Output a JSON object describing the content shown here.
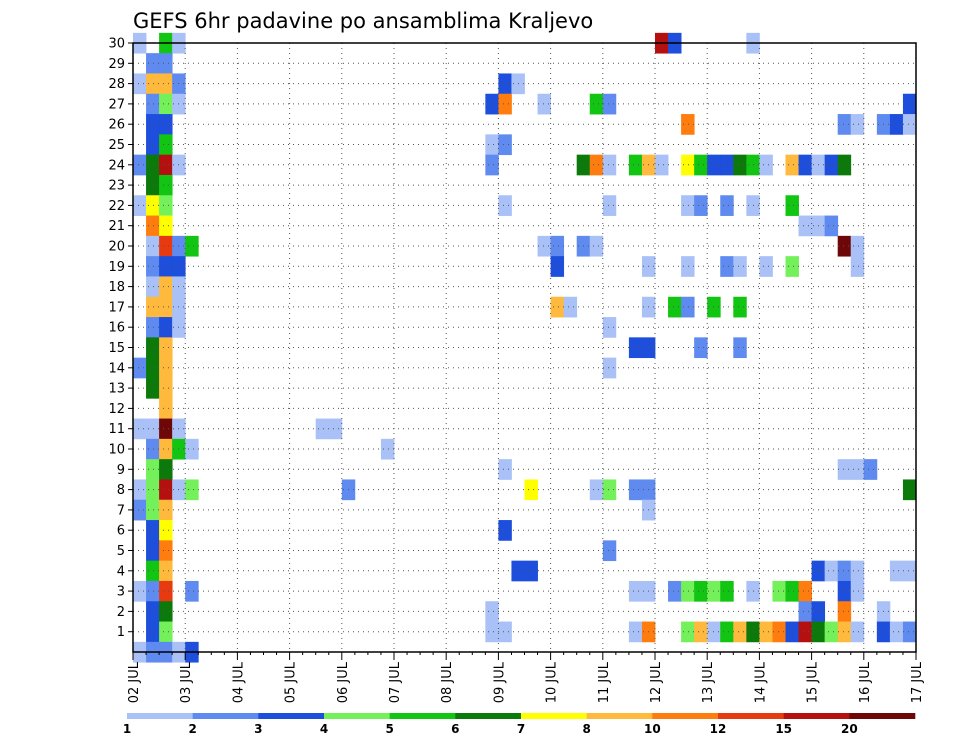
{
  "chart_data": {
    "type": "heatmap",
    "title": "GEFS 6hr padavine po ansamblima Kraljevo",
    "y_ticks": [
      "1",
      "2",
      "3",
      "4",
      "5",
      "6",
      "7",
      "8",
      "9",
      "10",
      "11",
      "12",
      "13",
      "14",
      "15",
      "16",
      "17",
      "18",
      "19",
      "20",
      "21",
      "22",
      "23",
      "24",
      "25",
      "26",
      "27",
      "28",
      "29",
      "30"
    ],
    "x_ticks": [
      "02 JUL",
      "03 JUL",
      "04 JUL",
      "05 JUL",
      "06 JUL",
      "07 JUL",
      "08 JUL",
      "09 JUL",
      "10 JUL",
      "11 JUL",
      "12 JUL",
      "13 JUL",
      "14 JUL",
      "15 JUL",
      "16 JUL",
      "17 JUL"
    ],
    "x_range_days": [
      0,
      15
    ],
    "steps_per_day": 4,
    "y_range": [
      0,
      30
    ],
    "grid": true,
    "legend_position": "bottom",
    "legend": {
      "thresholds": [
        "1",
        "2",
        "3",
        "4",
        "5",
        "6",
        "7",
        "8",
        "10",
        "12",
        "15",
        "20"
      ],
      "colors": [
        "#a9c1f7",
        "#5f8bf0",
        "#1d4fdc",
        "#74f05a",
        "#13c513",
        "#0b7a0b",
        "#ffff00",
        "#ffba3d",
        "#ff7c0e",
        "#e83a10",
        "#b51010",
        "#6e0808"
      ]
    },
    "cells": [
      [
        30,
        0,
        0
      ],
      [
        30,
        2,
        4
      ],
      [
        30,
        3,
        0
      ],
      [
        30,
        40,
        10
      ],
      [
        30,
        41,
        2
      ],
      [
        30,
        47,
        0
      ],
      [
        29,
        1,
        1
      ],
      [
        29,
        2,
        1
      ],
      [
        28,
        0,
        0
      ],
      [
        28,
        1,
        7
      ],
      [
        28,
        2,
        7
      ],
      [
        28,
        3,
        1
      ],
      [
        28,
        28,
        2
      ],
      [
        28,
        29,
        0
      ],
      [
        27,
        1,
        1
      ],
      [
        27,
        2,
        3
      ],
      [
        27,
        3,
        0
      ],
      [
        27,
        27,
        2
      ],
      [
        27,
        28,
        8
      ],
      [
        27,
        31,
        0
      ],
      [
        27,
        35,
        4
      ],
      [
        27,
        36,
        1
      ],
      [
        27,
        59,
        2
      ],
      [
        26,
        1,
        2
      ],
      [
        26,
        2,
        2
      ],
      [
        26,
        42,
        8
      ],
      [
        26,
        54,
        1
      ],
      [
        26,
        55,
        0
      ],
      [
        26,
        57,
        1
      ],
      [
        26,
        58,
        2
      ],
      [
        26,
        59,
        0
      ],
      [
        25,
        1,
        2
      ],
      [
        25,
        2,
        4
      ],
      [
        25,
        27,
        0
      ],
      [
        25,
        28,
        1
      ],
      [
        24,
        0,
        1
      ],
      [
        24,
        1,
        5
      ],
      [
        24,
        2,
        10
      ],
      [
        24,
        3,
        0
      ],
      [
        24,
        27,
        1
      ],
      [
        24,
        34,
        5
      ],
      [
        24,
        35,
        8
      ],
      [
        24,
        36,
        0
      ],
      [
        24,
        38,
        4
      ],
      [
        24,
        39,
        7
      ],
      [
        24,
        40,
        0
      ],
      [
        24,
        42,
        6
      ],
      [
        24,
        43,
        4
      ],
      [
        24,
        44,
        2
      ],
      [
        24,
        45,
        2
      ],
      [
        24,
        46,
        5
      ],
      [
        24,
        47,
        4
      ],
      [
        24,
        48,
        0
      ],
      [
        24,
        50,
        7
      ],
      [
        24,
        51,
        2
      ],
      [
        24,
        52,
        0
      ],
      [
        24,
        53,
        2
      ],
      [
        24,
        54,
        5
      ],
      [
        23,
        1,
        5
      ],
      [
        23,
        2,
        4
      ],
      [
        22,
        0,
        0
      ],
      [
        22,
        1,
        6
      ],
      [
        22,
        2,
        3
      ],
      [
        22,
        28,
        0
      ],
      [
        22,
        36,
        0
      ],
      [
        22,
        42,
        0
      ],
      [
        22,
        43,
        1
      ],
      [
        22,
        45,
        1
      ],
      [
        22,
        47,
        0
      ],
      [
        22,
        50,
        4
      ],
      [
        21,
        1,
        8
      ],
      [
        21,
        2,
        6
      ],
      [
        21,
        51,
        0
      ],
      [
        21,
        52,
        0
      ],
      [
        21,
        53,
        1
      ],
      [
        20,
        1,
        0
      ],
      [
        20,
        2,
        9
      ],
      [
        20,
        3,
        1
      ],
      [
        20,
        4,
        4
      ],
      [
        20,
        31,
        0
      ],
      [
        20,
        32,
        1
      ],
      [
        20,
        34,
        1
      ],
      [
        20,
        35,
        0
      ],
      [
        20,
        54,
        11
      ],
      [
        20,
        55,
        0
      ],
      [
        19,
        1,
        1
      ],
      [
        19,
        2,
        2
      ],
      [
        19,
        3,
        2
      ],
      [
        19,
        32,
        2
      ],
      [
        19,
        39,
        0
      ],
      [
        19,
        42,
        0
      ],
      [
        19,
        45,
        1
      ],
      [
        19,
        46,
        0
      ],
      [
        19,
        48,
        0
      ],
      [
        19,
        50,
        3
      ],
      [
        19,
        55,
        0
      ],
      [
        18,
        1,
        0
      ],
      [
        18,
        2,
        7
      ],
      [
        18,
        3,
        0
      ],
      [
        17,
        1,
        7
      ],
      [
        17,
        2,
        7
      ],
      [
        17,
        3,
        0
      ],
      [
        17,
        32,
        7
      ],
      [
        17,
        33,
        0
      ],
      [
        17,
        39,
        0
      ],
      [
        17,
        41,
        4
      ],
      [
        17,
        42,
        1
      ],
      [
        17,
        44,
        4
      ],
      [
        17,
        46,
        4
      ],
      [
        16,
        1,
        1
      ],
      [
        16,
        2,
        2
      ],
      [
        16,
        3,
        0
      ],
      [
        16,
        36,
        0
      ],
      [
        15,
        1,
        5
      ],
      [
        15,
        2,
        7
      ],
      [
        15,
        38,
        2
      ],
      [
        15,
        39,
        2
      ],
      [
        15,
        43,
        1
      ],
      [
        15,
        46,
        1
      ],
      [
        14,
        0,
        1
      ],
      [
        14,
        1,
        5
      ],
      [
        14,
        2,
        7
      ],
      [
        14,
        36,
        0
      ],
      [
        13,
        1,
        5
      ],
      [
        13,
        2,
        7
      ],
      [
        12,
        2,
        7
      ],
      [
        11,
        0,
        0
      ],
      [
        11,
        1,
        0
      ],
      [
        11,
        2,
        11
      ],
      [
        11,
        3,
        0
      ],
      [
        11,
        14,
        0
      ],
      [
        11,
        15,
        0
      ],
      [
        10,
        1,
        1
      ],
      [
        10,
        2,
        7
      ],
      [
        10,
        3,
        4
      ],
      [
        10,
        4,
        0
      ],
      [
        10,
        19,
        0
      ],
      [
        9,
        1,
        3
      ],
      [
        9,
        2,
        5
      ],
      [
        9,
        28,
        0
      ],
      [
        9,
        54,
        0
      ],
      [
        9,
        55,
        0
      ],
      [
        9,
        56,
        1
      ],
      [
        8,
        0,
        0
      ],
      [
        8,
        1,
        3
      ],
      [
        8,
        2,
        10
      ],
      [
        8,
        3,
        0
      ],
      [
        8,
        4,
        3
      ],
      [
        8,
        16,
        1
      ],
      [
        8,
        30,
        6
      ],
      [
        8,
        35,
        0
      ],
      [
        8,
        36,
        3
      ],
      [
        8,
        38,
        1
      ],
      [
        8,
        39,
        1
      ],
      [
        8,
        59,
        5
      ],
      [
        7,
        0,
        1
      ],
      [
        7,
        1,
        3
      ],
      [
        7,
        2,
        7
      ],
      [
        7,
        39,
        0
      ],
      [
        6,
        1,
        2
      ],
      [
        6,
        2,
        6
      ],
      [
        6,
        28,
        2
      ],
      [
        5,
        1,
        2
      ],
      [
        5,
        2,
        8
      ],
      [
        5,
        36,
        1
      ],
      [
        4,
        1,
        4
      ],
      [
        4,
        2,
        7
      ],
      [
        4,
        29,
        2
      ],
      [
        4,
        30,
        2
      ],
      [
        4,
        52,
        2
      ],
      [
        4,
        53,
        0
      ],
      [
        4,
        54,
        1
      ],
      [
        4,
        55,
        0
      ],
      [
        4,
        58,
        0
      ],
      [
        4,
        59,
        0
      ],
      [
        3,
        0,
        0
      ],
      [
        3,
        1,
        1
      ],
      [
        3,
        2,
        9
      ],
      [
        3,
        4,
        1
      ],
      [
        3,
        38,
        0
      ],
      [
        3,
        39,
        0
      ],
      [
        3,
        41,
        1
      ],
      [
        3,
        42,
        3
      ],
      [
        3,
        43,
        4
      ],
      [
        3,
        44,
        3
      ],
      [
        3,
        45,
        4
      ],
      [
        3,
        47,
        0
      ],
      [
        3,
        49,
        3
      ],
      [
        3,
        50,
        4
      ],
      [
        3,
        51,
        8
      ],
      [
        3,
        54,
        2
      ],
      [
        3,
        55,
        0
      ],
      [
        2,
        1,
        2
      ],
      [
        2,
        2,
        5
      ],
      [
        2,
        27,
        0
      ],
      [
        2,
        51,
        1
      ],
      [
        2,
        52,
        2
      ],
      [
        2,
        54,
        8
      ],
      [
        2,
        57,
        0
      ],
      [
        1,
        1,
        2
      ],
      [
        1,
        2,
        3
      ],
      [
        1,
        27,
        0
      ],
      [
        1,
        28,
        0
      ],
      [
        1,
        38,
        0
      ],
      [
        1,
        39,
        8
      ],
      [
        1,
        42,
        3
      ],
      [
        1,
        43,
        7
      ],
      [
        1,
        44,
        0
      ],
      [
        1,
        45,
        4
      ],
      [
        1,
        46,
        7
      ],
      [
        1,
        47,
        5
      ],
      [
        1,
        48,
        7
      ],
      [
        1,
        49,
        8
      ],
      [
        1,
        50,
        2
      ],
      [
        1,
        51,
        10
      ],
      [
        1,
        52,
        5
      ],
      [
        1,
        53,
        3
      ],
      [
        1,
        54,
        7
      ],
      [
        1,
        55,
        0
      ],
      [
        1,
        57,
        2
      ],
      [
        1,
        58,
        0
      ],
      [
        1,
        59,
        1
      ],
      [
        0,
        0,
        0
      ],
      [
        0,
        1,
        1
      ],
      [
        0,
        2,
        1
      ],
      [
        0,
        3,
        0
      ],
      [
        0,
        4,
        2
      ]
    ]
  }
}
